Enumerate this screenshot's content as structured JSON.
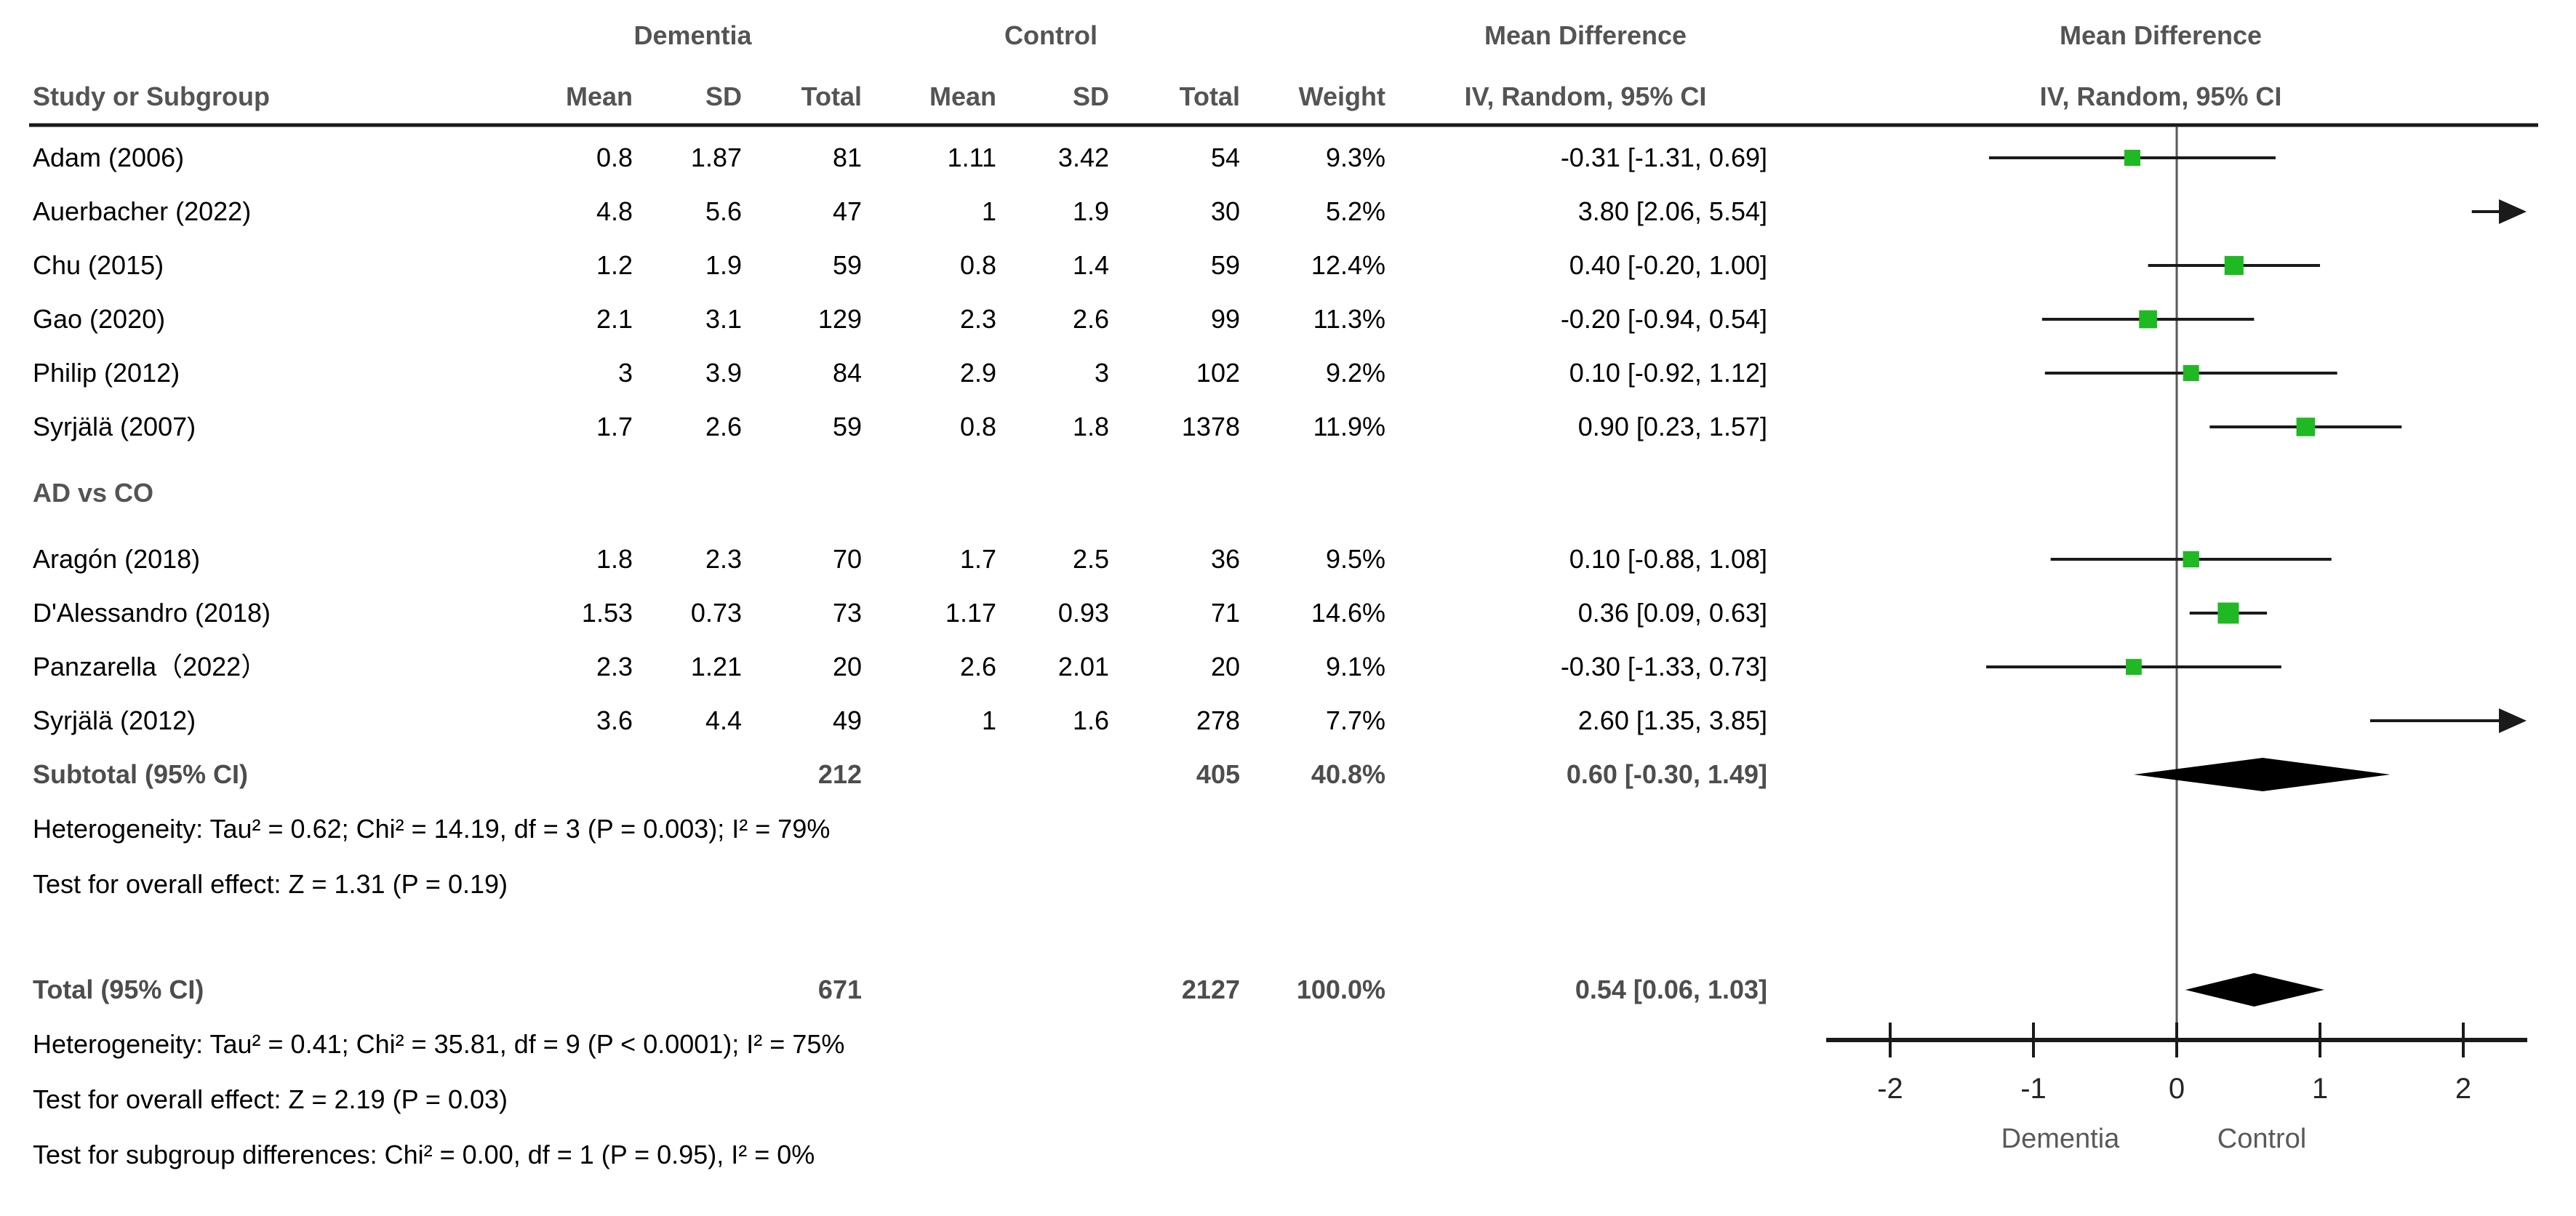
{
  "header": {
    "group_dementia": "Dementia",
    "group_control": "Control",
    "md_col_line1": "Mean Difference",
    "md_col_line2": "IV, Random, 95% CI",
    "plot_col_line1": "Mean Difference",
    "plot_col_line2": "IV, Random, 95% CI",
    "study": "Study or Subgroup",
    "mean": "Mean",
    "sd": "SD",
    "total": "Total",
    "weight": "Weight"
  },
  "chart_data": {
    "type": "forest",
    "effect_label": "Mean Difference",
    "method_label": "IV, Random, 95% CI",
    "group1_label": "Dementia",
    "group2_label": "Control",
    "axis": {
      "ticks": [
        -2,
        -1,
        0,
        1,
        2
      ],
      "min": -2.45,
      "max": 2.45,
      "left_label": "Dementia",
      "right_label": "Control"
    },
    "marker_color": "#1eb923",
    "rows": [
      {
        "kind": "study",
        "label": "Adam (2006)",
        "d_mean": "0.8",
        "d_sd": "1.87",
        "d_total": "81",
        "c_mean": "1.11",
        "c_sd": "3.42",
        "c_total": "54",
        "weight": "9.3%",
        "weight_val": 9.3,
        "ci_text": "-0.31 [-1.31, 0.69]",
        "est": -0.31,
        "lo": -1.31,
        "hi": 0.69
      },
      {
        "kind": "study",
        "label": "Auerbacher (2022)",
        "d_mean": "4.8",
        "d_sd": "5.6",
        "d_total": "47",
        "c_mean": "1",
        "c_sd": "1.9",
        "c_total": "30",
        "weight": "5.2%",
        "weight_val": 5.2,
        "ci_text": "3.80 [2.06, 5.54]",
        "est": 3.8,
        "lo": 2.06,
        "hi": 5.54
      },
      {
        "kind": "study",
        "label": "Chu (2015)",
        "d_mean": "1.2",
        "d_sd": "1.9",
        "d_total": "59",
        "c_mean": "0.8",
        "c_sd": "1.4",
        "c_total": "59",
        "weight": "12.4%",
        "weight_val": 12.4,
        "ci_text": "0.40 [-0.20, 1.00]",
        "est": 0.4,
        "lo": -0.2,
        "hi": 1.0
      },
      {
        "kind": "study",
        "label": "Gao (2020)",
        "d_mean": "2.1",
        "d_sd": "3.1",
        "d_total": "129",
        "c_mean": "2.3",
        "c_sd": "2.6",
        "c_total": "99",
        "weight": "11.3%",
        "weight_val": 11.3,
        "ci_text": "-0.20 [-0.94, 0.54]",
        "est": -0.2,
        "lo": -0.94,
        "hi": 0.54
      },
      {
        "kind": "study",
        "label": "Philip (2012)",
        "d_mean": "3",
        "d_sd": "3.9",
        "d_total": "84",
        "c_mean": "2.9",
        "c_sd": "3",
        "c_total": "102",
        "weight": "9.2%",
        "weight_val": 9.2,
        "ci_text": "0.10 [-0.92, 1.12]",
        "est": 0.1,
        "lo": -0.92,
        "hi": 1.12
      },
      {
        "kind": "study",
        "label": "Syrjälä (2007)",
        "d_mean": "1.7",
        "d_sd": "2.6",
        "d_total": "59",
        "c_mean": "0.8",
        "c_sd": "1.8",
        "c_total": "1378",
        "weight": "11.9%",
        "weight_val": 11.9,
        "ci_text": "0.90 [0.23, 1.57]",
        "est": 0.9,
        "lo": 0.23,
        "hi": 1.57
      },
      {
        "kind": "subheader",
        "label": "AD vs CO"
      },
      {
        "kind": "study",
        "label": "Aragón (2018)",
        "d_mean": "1.8",
        "d_sd": "2.3",
        "d_total": "70",
        "c_mean": "1.7",
        "c_sd": "2.5",
        "c_total": "36",
        "weight": "9.5%",
        "weight_val": 9.5,
        "ci_text": "0.10 [-0.88, 1.08]",
        "est": 0.1,
        "lo": -0.88,
        "hi": 1.08
      },
      {
        "kind": "study",
        "label": "D'Alessandro (2018)",
        "d_mean": "1.53",
        "d_sd": "0.73",
        "d_total": "73",
        "c_mean": "1.17",
        "c_sd": "0.93",
        "c_total": "71",
        "weight": "14.6%",
        "weight_val": 14.6,
        "ci_text": "0.36 [0.09, 0.63]",
        "est": 0.36,
        "lo": 0.09,
        "hi": 0.63
      },
      {
        "kind": "study",
        "label": "Panzarella（2022）",
        "d_mean": "2.3",
        "d_sd": "1.21",
        "d_total": "20",
        "c_mean": "2.6",
        "c_sd": "2.01",
        "c_total": "20",
        "weight": "9.1%",
        "weight_val": 9.1,
        "ci_text": "-0.30 [-1.33, 0.73]",
        "est": -0.3,
        "lo": -1.33,
        "hi": 0.73
      },
      {
        "kind": "study",
        "label": "Syrjälä (2012)",
        "d_mean": "3.6",
        "d_sd": "4.4",
        "d_total": "49",
        "c_mean": "1",
        "c_sd": "1.6",
        "c_total": "278",
        "weight": "7.7%",
        "weight_val": 7.7,
        "ci_text": "2.60 [1.35, 3.85]",
        "est": 2.6,
        "lo": 1.35,
        "hi": 3.85
      },
      {
        "kind": "subtotal",
        "label": "Subtotal (95% CI)",
        "d_total": "212",
        "c_total": "405",
        "weight": "40.8%",
        "ci_text": "0.60 [-0.30, 1.49]",
        "est": 0.6,
        "lo": -0.3,
        "hi": 1.49
      },
      {
        "kind": "note",
        "text": "Heterogeneity: Tau² = 0.62; Chi² = 14.19, df = 3 (P = 0.003); I² = 79%"
      },
      {
        "kind": "note",
        "text": "Test for overall effect: Z = 1.31 (P = 0.19)"
      },
      {
        "kind": "total",
        "label": "Total (95% CI)",
        "d_total": "671",
        "c_total": "2127",
        "weight": "100.0%",
        "ci_text": "0.54 [0.06, 1.03]",
        "est": 0.54,
        "lo": 0.06,
        "hi": 1.03
      },
      {
        "kind": "note",
        "text": "Heterogeneity: Tau² = 0.41; Chi² = 35.81, df = 9 (P < 0.0001); I² = 75%"
      },
      {
        "kind": "note",
        "text": "Test for overall effect: Z = 2.19 (P = 0.03)"
      },
      {
        "kind": "note",
        "text": "Test for subgroup differences: Chi² = 0.00, df = 1 (P = 0.95), I² = 0%"
      }
    ]
  }
}
